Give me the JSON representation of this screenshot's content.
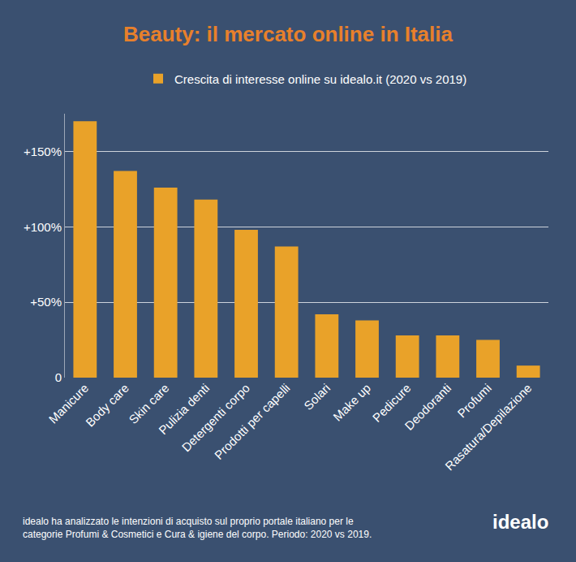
{
  "chart_data": {
    "type": "bar",
    "title": "Beauty: il mercato online in Italia",
    "categories": [
      "Manicure",
      "Body care",
      "Skin care",
      "Pulizia denti",
      "Detergenti corpo",
      "Prodotti per capelli",
      "Solari",
      "Make up",
      "Pedicure",
      "Deodoranti",
      "Profumi",
      "Rasatura/Depilazione"
    ],
    "series": [
      {
        "name": "Crescita di interesse online su idealo.it (2020 vs 2019)",
        "color": "#e9a229",
        "values": [
          170,
          137,
          126,
          118,
          98,
          87,
          42,
          38,
          28,
          28,
          25,
          8
        ]
      }
    ],
    "ylim": [
      0,
      175
    ],
    "yticks": [
      0,
      {
        "value": 50,
        "label": "+50%"
      },
      {
        "value": 100,
        "label": "+100%"
      },
      {
        "value": 150,
        "label": "+150%"
      }
    ],
    "grid": true,
    "legend": "top",
    "annotations": [
      "idealo ha analizzato le intenzioni di acquisto sul proprio portale italiano per le\ncategorie Profumi & Cosmetici e Cura & igiene del corpo. Periodo: 2020 vs 2019.",
      "idealo"
    ]
  }
}
